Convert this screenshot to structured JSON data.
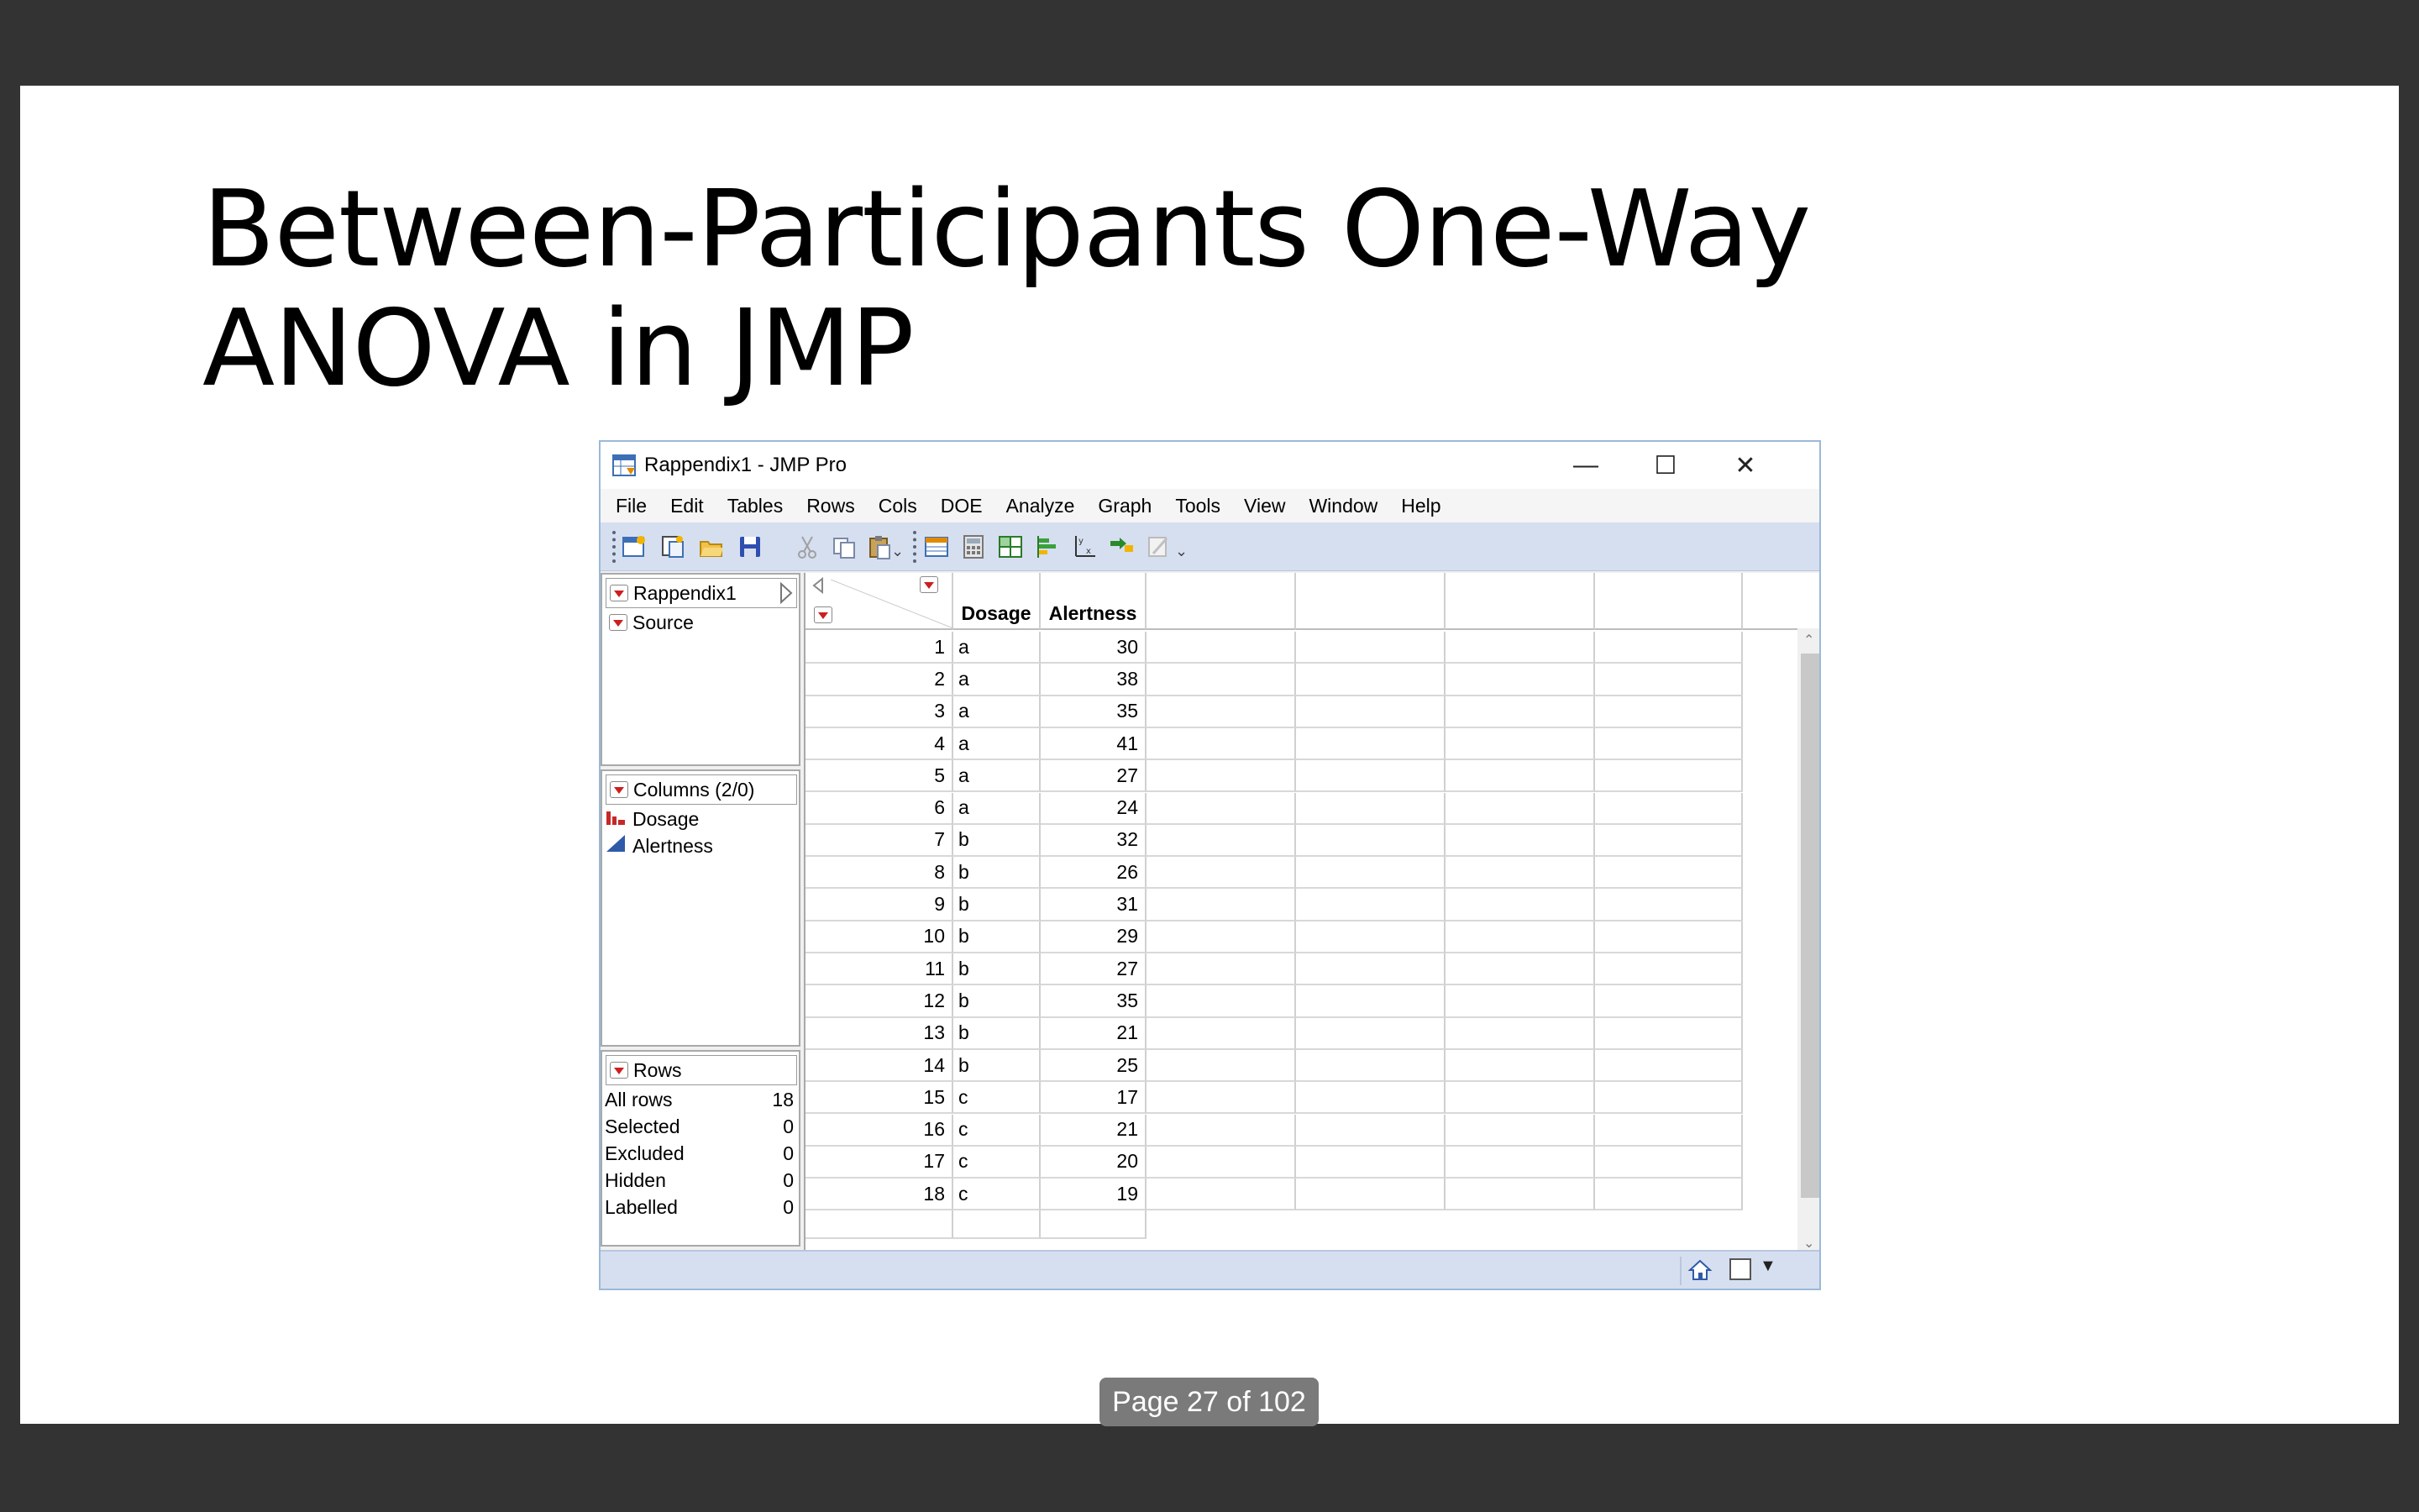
{
  "slide": {
    "title_line1": "Between-Participants One-Way",
    "title_line2": "ANOVA in JMP",
    "page_indicator": "Page 27 of 102"
  },
  "window": {
    "title": "Rappendix1 - JMP Pro",
    "controls": {
      "minimize": "—",
      "maximize": "☐",
      "close": "✕"
    }
  },
  "menu": [
    "File",
    "Edit",
    "Tables",
    "Rows",
    "Cols",
    "DOE",
    "Analyze",
    "Graph",
    "Tools",
    "View",
    "Window",
    "Help"
  ],
  "toolbar_icons": [
    "new-data-table-icon",
    "new-script-icon",
    "open-icon",
    "save-icon",
    "cut-icon",
    "copy-icon",
    "paste-icon",
    "data-table-icon",
    "formula-icon",
    "grid-icon",
    "distribution-icon",
    "fit-y-by-x-icon",
    "fit-model-icon",
    "edit-icon"
  ],
  "table_panel": {
    "name": "Rappendix1",
    "items": [
      "Source"
    ]
  },
  "columns_panel": {
    "header": "Columns (2/0)",
    "columns": [
      {
        "name": "Dosage",
        "icon": "nominal-bars-icon"
      },
      {
        "name": "Alertness",
        "icon": "continuous-triangle-icon"
      }
    ]
  },
  "rows_panel": {
    "header": "Rows",
    "stats": [
      {
        "label": "All rows",
        "value": "18"
      },
      {
        "label": "Selected",
        "value": "0"
      },
      {
        "label": "Excluded",
        "value": "0"
      },
      {
        "label": "Hidden",
        "value": "0"
      },
      {
        "label": "Labelled",
        "value": "0"
      }
    ]
  },
  "grid": {
    "headers": [
      "Dosage",
      "Alertness"
    ],
    "rows": [
      {
        "n": "1",
        "dosage": "a",
        "alertness": "30"
      },
      {
        "n": "2",
        "dosage": "a",
        "alertness": "38"
      },
      {
        "n": "3",
        "dosage": "a",
        "alertness": "35"
      },
      {
        "n": "4",
        "dosage": "a",
        "alertness": "41"
      },
      {
        "n": "5",
        "dosage": "a",
        "alertness": "27"
      },
      {
        "n": "6",
        "dosage": "a",
        "alertness": "24"
      },
      {
        "n": "7",
        "dosage": "b",
        "alertness": "32"
      },
      {
        "n": "8",
        "dosage": "b",
        "alertness": "26"
      },
      {
        "n": "9",
        "dosage": "b",
        "alertness": "31"
      },
      {
        "n": "10",
        "dosage": "b",
        "alertness": "29"
      },
      {
        "n": "11",
        "dosage": "b",
        "alertness": "27"
      },
      {
        "n": "12",
        "dosage": "b",
        "alertness": "35"
      },
      {
        "n": "13",
        "dosage": "b",
        "alertness": "21"
      },
      {
        "n": "14",
        "dosage": "b",
        "alertness": "25"
      },
      {
        "n": "15",
        "dosage": "c",
        "alertness": "17"
      },
      {
        "n": "16",
        "dosage": "c",
        "alertness": "21"
      },
      {
        "n": "17",
        "dosage": "c",
        "alertness": "20"
      },
      {
        "n": "18",
        "dosage": "c",
        "alertness": "19"
      }
    ]
  },
  "colors": {
    "slide_bg": "#ffffff",
    "outer_bg": "#333333",
    "toolbar_bg": "#d6dff0",
    "red_triangle": "#cc1f1f",
    "nominal_icon": "#c62828",
    "continuous_icon": "#2f5aa8"
  }
}
